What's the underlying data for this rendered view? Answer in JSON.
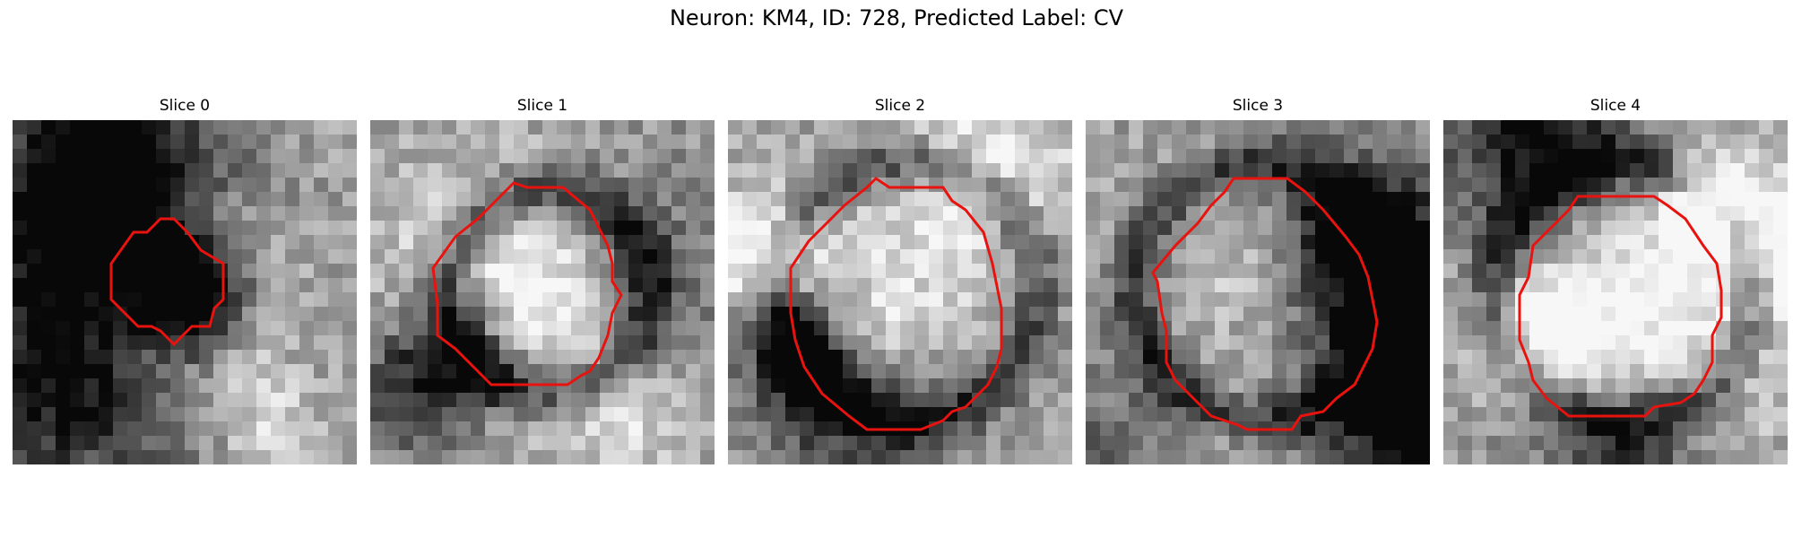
{
  "figure": {
    "title": "Neuron: KM4, ID: 728, Predicted Label: CV"
  },
  "panels": [
    {
      "title": "Slice 0",
      "seed": 11,
      "kind": "dark",
      "contour_color": "#e8120f"
    },
    {
      "title": "Slice 1",
      "seed": 23,
      "kind": "ring",
      "contour_color": "#e8120f"
    },
    {
      "title": "Slice 2",
      "seed": 37,
      "kind": "bright",
      "contour_color": "#e8120f"
    },
    {
      "title": "Slice 3",
      "seed": 41,
      "kind": "bright",
      "contour_color": "#e8120f"
    },
    {
      "title": "Slice 4",
      "seed": 59,
      "kind": "bright",
      "contour_color": "#e8120f"
    }
  ]
}
